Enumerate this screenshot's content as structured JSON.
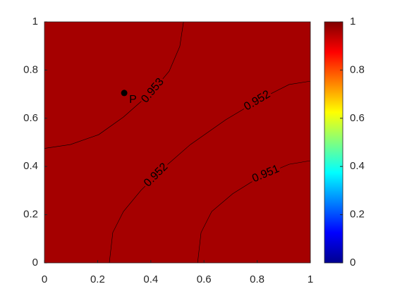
{
  "chart_data": {
    "type": "contour",
    "fill_color": "#a50000",
    "xlim": [
      0,
      1
    ],
    "ylim": [
      0,
      1
    ],
    "xticks": [
      0,
      0.2,
      0.4,
      0.6,
      0.8,
      1
    ],
    "yticks": [
      0,
      0.2,
      0.4,
      0.6,
      0.8,
      1
    ],
    "contours": [
      {
        "level": 0.953,
        "x": [
          0,
          0.098,
          0.204,
          0.297,
          0.403,
          0.469,
          0.509,
          0.523
        ],
        "y": [
          0.475,
          0.491,
          0.532,
          0.605,
          0.708,
          0.795,
          0.898,
          1
        ]
      },
      {
        "level": 0.952,
        "x": [
          0.244,
          0.257,
          0.297,
          0.363,
          0.443,
          0.549,
          0.682,
          0.814,
          0.92,
          1
        ],
        "y": [
          0,
          0.126,
          0.213,
          0.301,
          0.389,
          0.491,
          0.594,
          0.681,
          0.74,
          0.754
        ]
      },
      {
        "level": 0.951,
        "x": [
          0.576,
          0.589,
          0.629,
          0.708,
          0.814,
          0.92,
          1
        ],
        "y": [
          0,
          0.126,
          0.213,
          0.287,
          0.36,
          0.409,
          0.424
        ]
      }
    ],
    "point": {
      "x": 0.3,
      "y": 0.705,
      "label": "P"
    },
    "colorbar": {
      "colormap": "jet",
      "clim": [
        0,
        1
      ],
      "ticks": [
        0,
        0.2,
        0.4,
        0.6,
        0.8,
        1
      ]
    }
  }
}
